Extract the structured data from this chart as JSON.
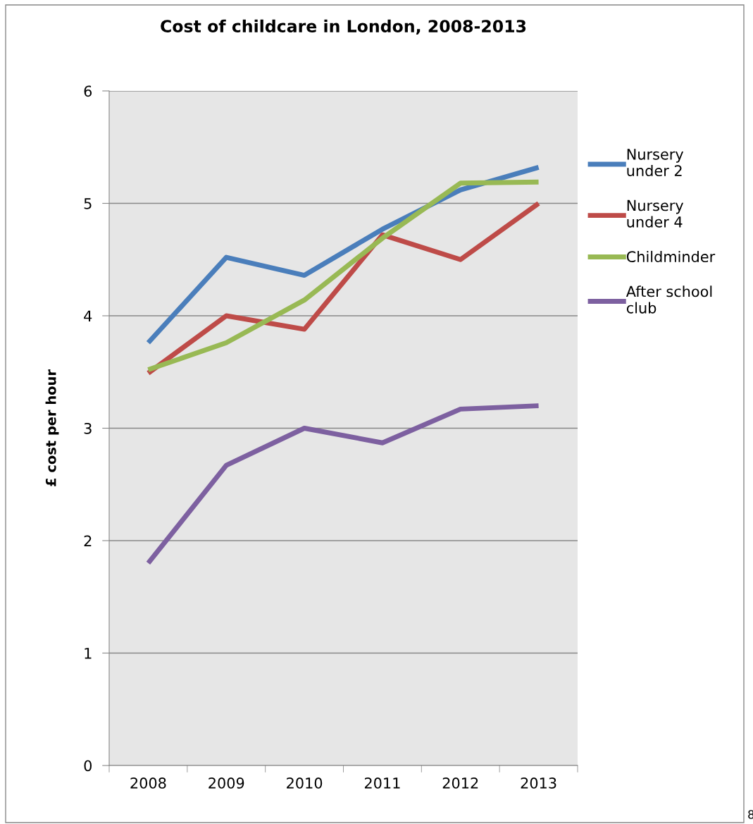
{
  "chart_data": {
    "type": "line",
    "title": "Cost of childcare in London, 2008-2013",
    "ylabel": "£ cost per hour",
    "categories": [
      "2008",
      "2009",
      "2010",
      "2011",
      "2012",
      "2013"
    ],
    "series": [
      {
        "name": "Nursery\nunder 2",
        "color": "#4a7ebb",
        "values": [
          3.76,
          4.52,
          4.36,
          4.77,
          5.12,
          5.32
        ]
      },
      {
        "name": "Nursery\nunder 4",
        "color": "#be4b48",
        "values": [
          3.49,
          4.0,
          3.88,
          4.72,
          4.5,
          5.0
        ]
      },
      {
        "name": "Childminder",
        "color": "#98b954",
        "values": [
          3.52,
          3.76,
          4.14,
          4.69,
          5.18,
          5.19
        ]
      },
      {
        "name": "After school\nclub",
        "color": "#7d60a0",
        "values": [
          1.8,
          2.67,
          3.0,
          2.87,
          3.17,
          3.2
        ]
      }
    ],
    "ylim": [
      0,
      6
    ],
    "yticks": [
      0,
      1,
      2,
      3,
      4,
      5,
      6
    ],
    "grid": "y",
    "legend": "right",
    "marker": "none",
    "line_style": "solid",
    "annotations": [
      "8"
    ]
  }
}
